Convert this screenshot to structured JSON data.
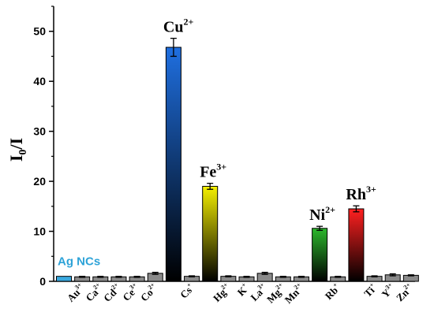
{
  "chart_data": {
    "type": "bar",
    "xlabel": "",
    "ylabel": {
      "main": "I",
      "sub": "0",
      "tail": "/I"
    },
    "ylim": [
      0,
      55
    ],
    "yticks": [
      "0",
      "10",
      "20",
      "30",
      "40",
      "50"
    ],
    "yticks_values": [
      0,
      10,
      20,
      30,
      40,
      50
    ],
    "categories": [
      {
        "base": "",
        "sup": ""
      },
      {
        "base": "Au",
        "sup": "3+"
      },
      {
        "base": "Ca",
        "sup": "2+"
      },
      {
        "base": "Cd",
        "sup": "2+"
      },
      {
        "base": "Ce",
        "sup": "3+"
      },
      {
        "base": "Co",
        "sup": "2+"
      },
      {
        "base": "",
        "sup": ""
      },
      {
        "base": "Cs",
        "sup": "+"
      },
      {
        "base": "",
        "sup": ""
      },
      {
        "base": "Hg",
        "sup": "2+"
      },
      {
        "base": "K",
        "sup": "+"
      },
      {
        "base": "La",
        "sup": "3+"
      },
      {
        "base": "Mg",
        "sup": "2+"
      },
      {
        "base": "Mn",
        "sup": "2+"
      },
      {
        "base": "",
        "sup": ""
      },
      {
        "base": "Rb",
        "sup": "+"
      },
      {
        "base": "",
        "sup": ""
      },
      {
        "base": "Ti",
        "sup": "+"
      },
      {
        "base": "Y",
        "sup": "3+"
      },
      {
        "base": "Zn",
        "sup": "2+"
      }
    ],
    "values": [
      1.0,
      0.9,
      0.9,
      0.9,
      0.9,
      1.6,
      46.8,
      1.0,
      19.0,
      1.0,
      0.9,
      1.6,
      0.9,
      0.9,
      10.6,
      0.9,
      14.5,
      1.0,
      1.3,
      1.2
    ],
    "errors": [
      0.0,
      0.1,
      0.1,
      0.1,
      0.1,
      0.2,
      1.8,
      0.1,
      0.6,
      0.1,
      0.1,
      0.2,
      0.1,
      0.1,
      0.4,
      0.1,
      0.6,
      0.1,
      0.2,
      0.1
    ],
    "bar_styles": [
      "agnc",
      "gray",
      "gray",
      "gray",
      "gray",
      "gray",
      "cu",
      "gray",
      "fe",
      "gray",
      "gray",
      "gray",
      "gray",
      "gray",
      "ni",
      "gray",
      "rh",
      "gray",
      "gray",
      "gray"
    ],
    "annotations": [
      {
        "index": 0,
        "text": "Ag NCs",
        "sup": "",
        "style": "agnc"
      },
      {
        "index": 6,
        "text": "Cu",
        "sup": "2+",
        "style": "big"
      },
      {
        "index": 8,
        "text": "Fe",
        "sup": "3+",
        "style": "big"
      },
      {
        "index": 14,
        "text": "Ni",
        "sup": "2+",
        "style": "big"
      },
      {
        "index": 16,
        "text": "Rh",
        "sup": "3+",
        "style": "big"
      }
    ],
    "colors": {
      "gray": "#8a8a8a",
      "agnc": "#3aa9df",
      "cu_top": "#1f6fe0",
      "cu_bottom": "#000000",
      "fe_top": "#f5f000",
      "fe_bottom": "#000000",
      "ni_top": "#2db82d",
      "ni_bottom": "#000000",
      "rh_top": "#ff2020",
      "rh_bottom": "#000000"
    },
    "grid": false
  }
}
